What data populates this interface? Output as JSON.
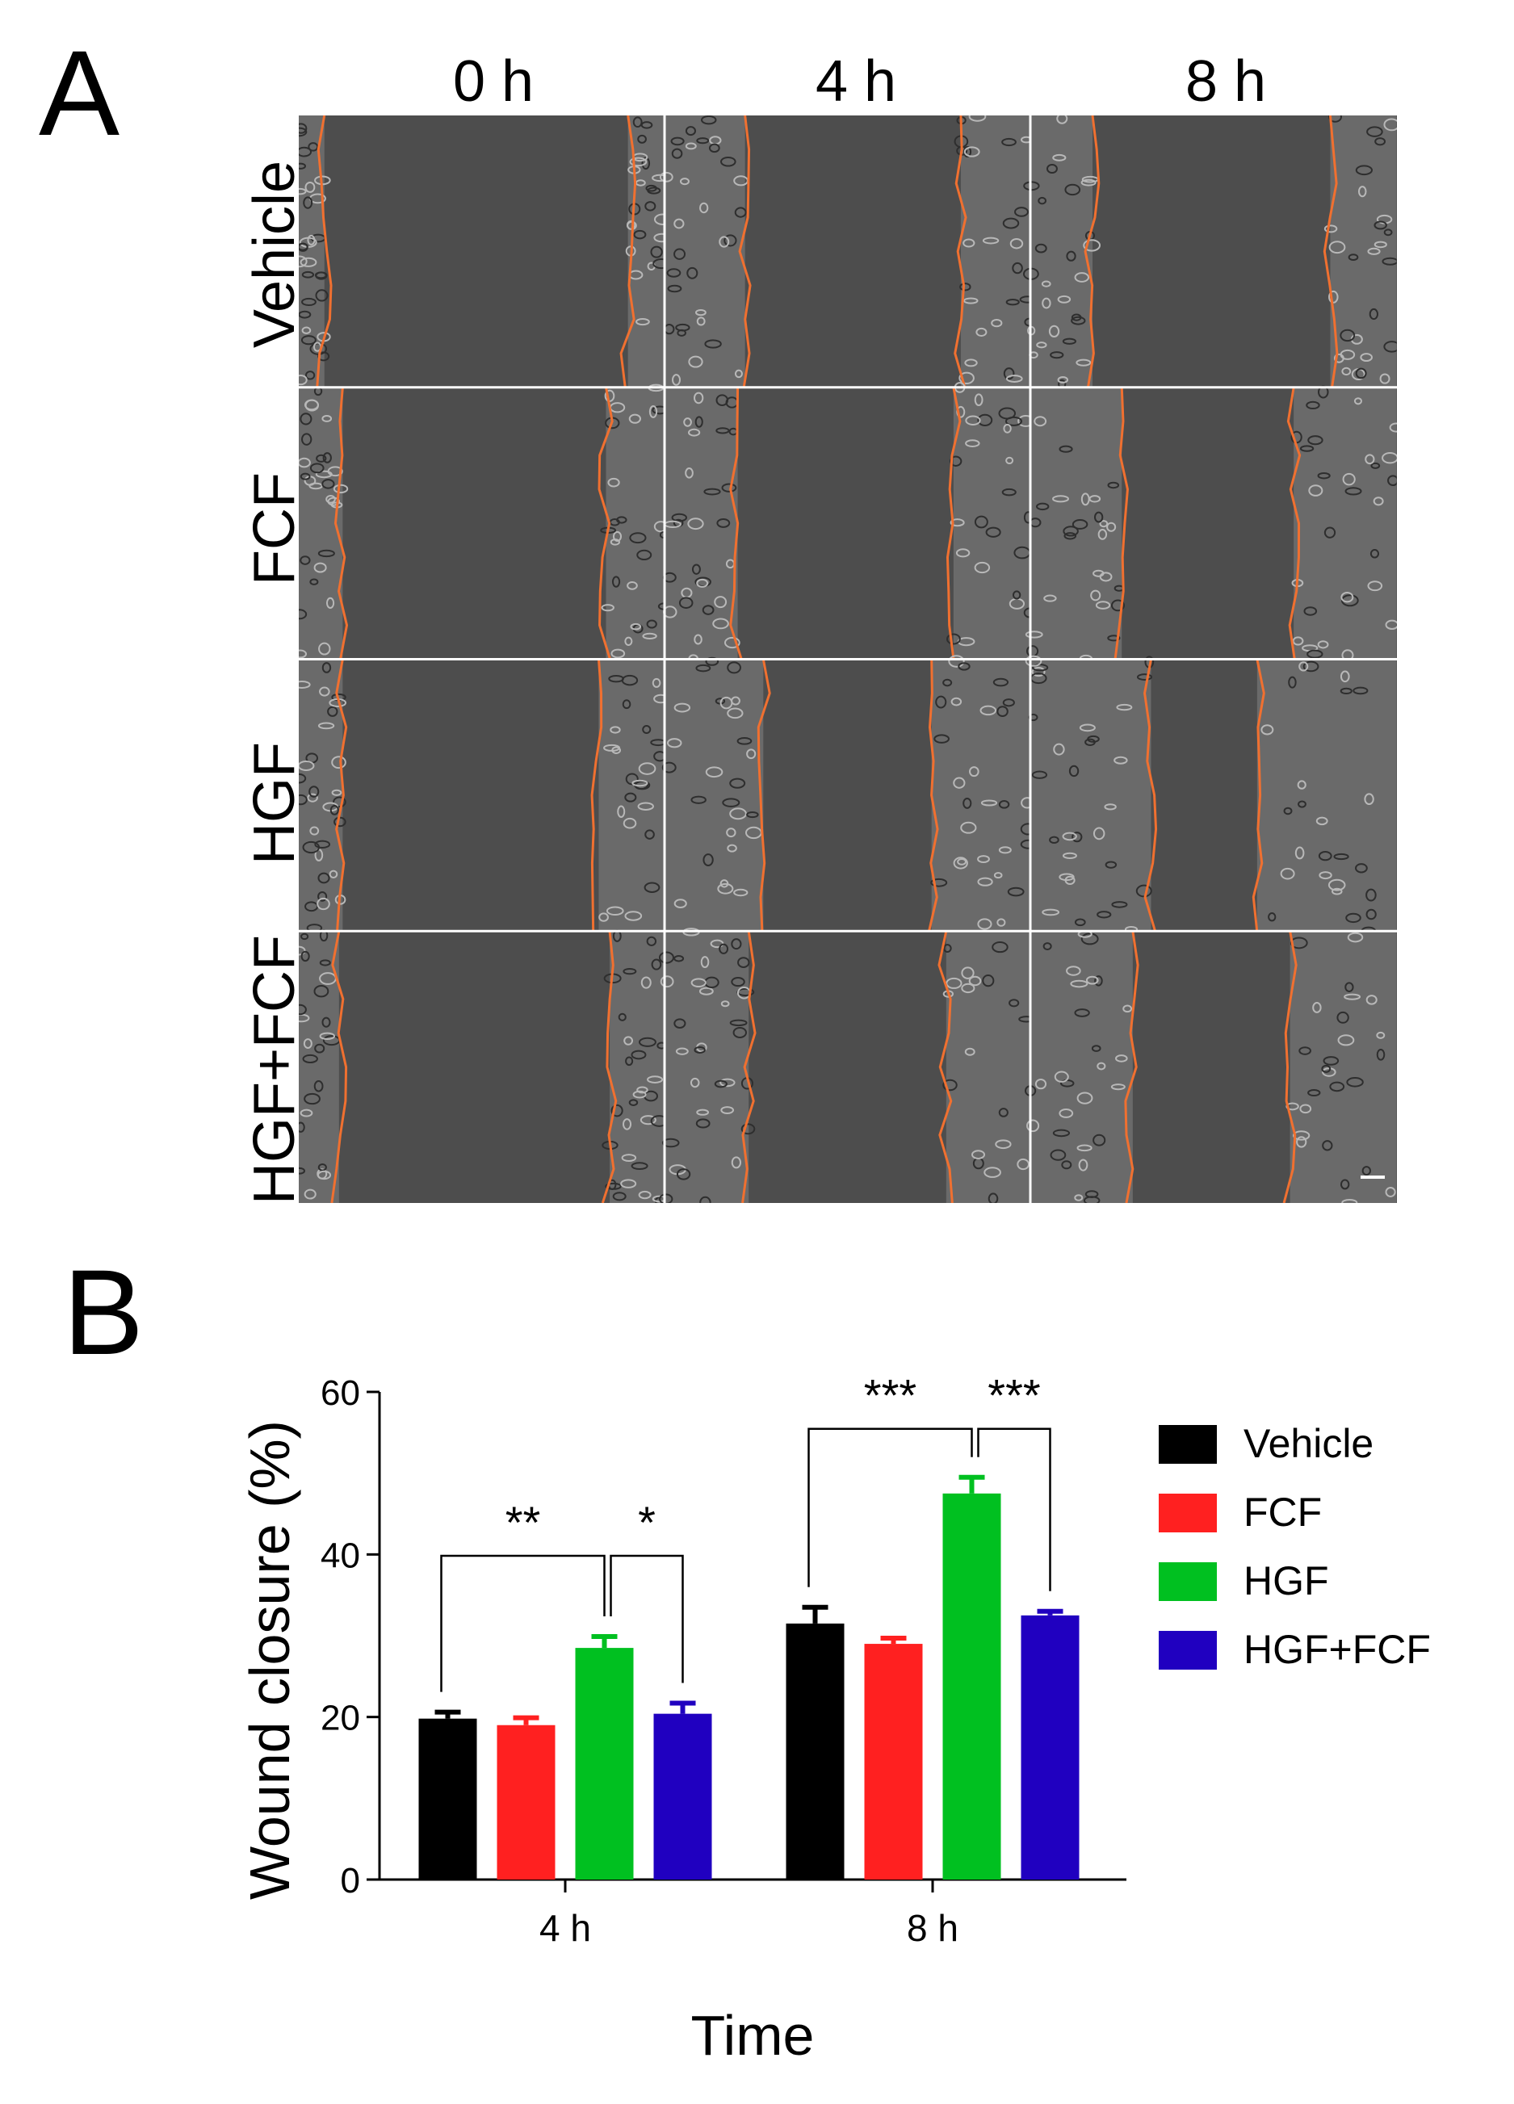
{
  "panel_a": {
    "letter": "A",
    "columns": [
      "0 h",
      "4 h",
      "8 h"
    ],
    "rows": [
      "Vehicle",
      "FCF",
      "HGF",
      "HGF+FCF"
    ],
    "wound_edge_color": "#f07030",
    "image_background": "#535353"
  },
  "panel_b": {
    "letter": "B"
  },
  "chart_data": {
    "type": "bar",
    "categories": [
      "4 h",
      "8 h"
    ],
    "xlabel": "Time",
    "ylabel": "Wound closure (%)",
    "ylim": [
      0,
      60
    ],
    "yticks": [
      0,
      20,
      40,
      60
    ],
    "series": [
      {
        "name": "Vehicle",
        "color": "#000000",
        "values": [
          19.8,
          31.5
        ],
        "errors": [
          0.8,
          2.0
        ]
      },
      {
        "name": "FCF",
        "color": "#ff2020",
        "values": [
          19.0,
          29.0
        ],
        "errors": [
          0.9,
          0.7
        ]
      },
      {
        "name": "HGF",
        "color": "#00c020",
        "values": [
          28.5,
          47.5
        ],
        "errors": [
          1.4,
          2.0
        ]
      },
      {
        "name": "HGF+FCF",
        "color": "#2000c0",
        "values": [
          20.4,
          32.5
        ],
        "errors": [
          1.3,
          0.5
        ]
      }
    ],
    "legend_position": "right",
    "significance": [
      {
        "category": "4 h",
        "from": "Vehicle",
        "to": "HGF",
        "label": "**"
      },
      {
        "category": "4 h",
        "from": "HGF",
        "to": "HGF+FCF",
        "label": "*"
      },
      {
        "category": "8 h",
        "from": "Vehicle",
        "to": "HGF",
        "label": "***"
      },
      {
        "category": "8 h",
        "from": "HGF",
        "to": "HGF+FCF",
        "label": "***"
      }
    ]
  }
}
